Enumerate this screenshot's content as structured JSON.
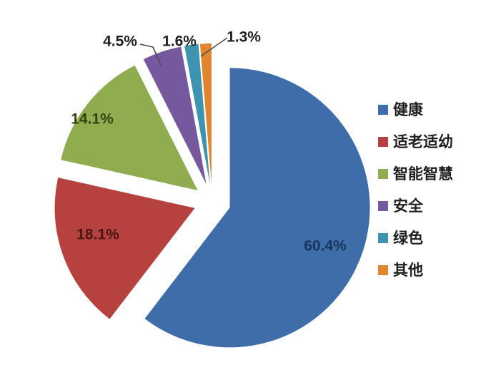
{
  "figure": {
    "background": "#FFFFFF"
  },
  "chart_data": {
    "type": "pie",
    "title": "",
    "value_suffix": "%",
    "start_angle_deg": 0,
    "direction": "clockwise",
    "exploded": true,
    "grid": false,
    "legend_position": "right",
    "outside_label_color": "#1F1F1F",
    "leader_line_color": "#4D4D4D",
    "series": [
      {
        "id": "jian-kang",
        "label": "健康",
        "value": 60.4,
        "display_value": "60.4%",
        "color": "#3E6DA9",
        "label_color": "#17375D",
        "label_placement": "inside"
      },
      {
        "id": "shi-lao-shi-you",
        "label": "适老适幼",
        "value": 18.1,
        "display_value": "18.1%",
        "color": "#B5423E",
        "label_color": "#4A1512",
        "label_placement": "inside"
      },
      {
        "id": "zhi-neng-zhi-hui",
        "label": "智能智慧",
        "value": 14.1,
        "display_value": "14.1%",
        "color": "#8FAC4E",
        "label_color": "#33420F",
        "label_placement": "inside"
      },
      {
        "id": "an-quan",
        "label": "安全",
        "value": 4.5,
        "display_value": "4.5%",
        "color": "#76589E",
        "label_color": "#1F1F1F",
        "label_placement": "outside"
      },
      {
        "id": "lv-se",
        "label": "绿色",
        "value": 1.6,
        "display_value": "1.6%",
        "color": "#3E93B0",
        "label_color": "#1F1F1F",
        "label_placement": "outside"
      },
      {
        "id": "qi-ta",
        "label": "其他",
        "value": 1.3,
        "display_value": "1.3%",
        "color": "#E0862E",
        "label_color": "#1F1F1F",
        "label_placement": "outside"
      }
    ]
  }
}
